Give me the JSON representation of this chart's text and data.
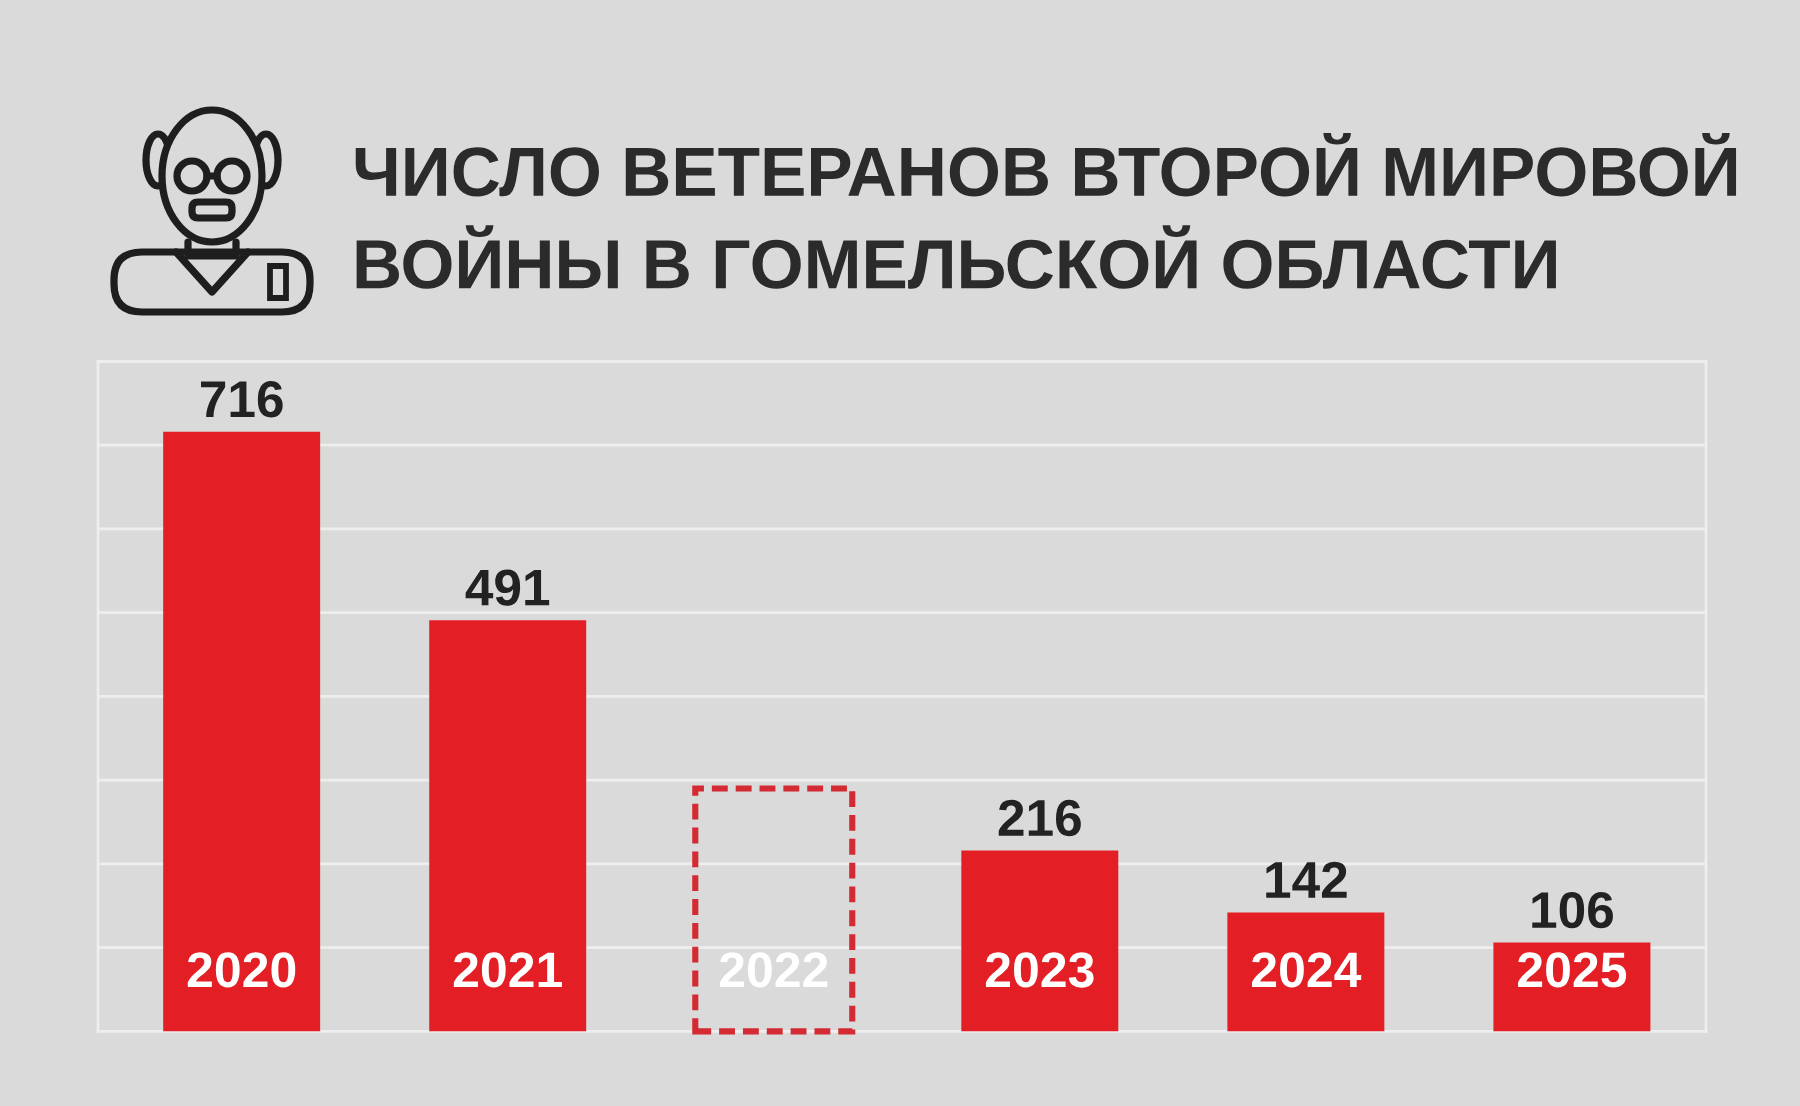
{
  "chart_data": {
    "type": "bar",
    "title": "ЧИСЛО ВЕТЕРАНОВ ВТОРОЙ МИРОВОЙ\nВОЙНЫ В ГОМЕЛЬСКОЙ ОБЛАСТИ",
    "categories": [
      "2020",
      "2021",
      "2022",
      "2023",
      "2024",
      "2025"
    ],
    "series": [
      {
        "color": "#e31e24",
        "values": [
          716,
          491,
          null,
          216,
          142,
          106
        ],
        "value_labels": [
          "716",
          "491",
          null,
          "216",
          "142",
          "106"
        ]
      },
      {
        "color": "#d42a33",
        "line_style": "dashed",
        "values": [
          null,
          null,
          290,
          null,
          null,
          null
        ]
      }
    ],
    "ylim": [
      0,
      800
    ],
    "yticks": [
      {
        "value": 0,
        "label": null
      },
      {
        "value": 100,
        "label": null
      },
      {
        "value": 200,
        "label": null
      },
      {
        "value": 300,
        "label": null
      },
      {
        "value": 400,
        "label": null
      },
      {
        "value": 500,
        "label": null
      },
      {
        "value": 600,
        "label": null
      },
      {
        "value": 700,
        "label": null
      },
      {
        "value": 800,
        "label": null
      }
    ],
    "tick_labels": "x",
    "grid": "y"
  }
}
